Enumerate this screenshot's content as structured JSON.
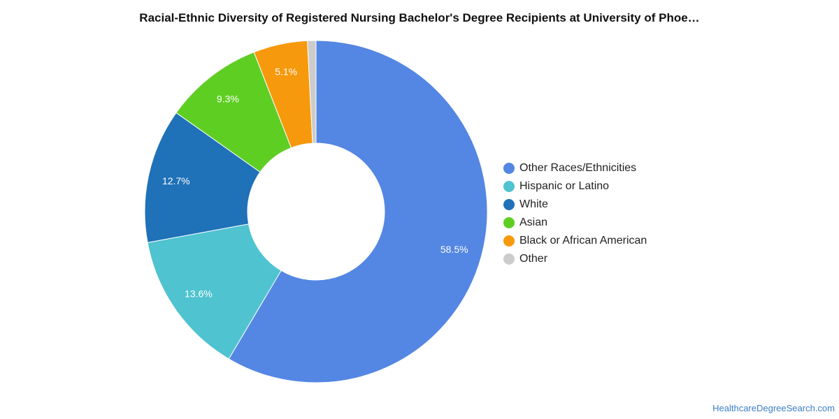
{
  "chart_data": {
    "type": "pie",
    "title": "Racial-Ethnic Diversity of Registered Nursing Bachelor's Degree Recipients at University of Phoe…",
    "categories": [
      "Other Races/Ethnicities",
      "Hispanic or Latino",
      "White",
      "Asian",
      "Black or African American",
      "Other"
    ],
    "values": [
      58.5,
      13.6,
      12.7,
      9.3,
      5.1,
      0.8
    ],
    "labels": [
      "58.5%",
      "13.6%",
      "12.7%",
      "9.3%",
      "5.1%",
      ""
    ],
    "colors": [
      "#5486e3",
      "#4fc3cf",
      "#1f71b8",
      "#5fce23",
      "#f7990c",
      "#cccccc"
    ],
    "donut": true,
    "legend_position": "right"
  },
  "footer": {
    "source": "HealthcareDegreeSearch.com"
  }
}
